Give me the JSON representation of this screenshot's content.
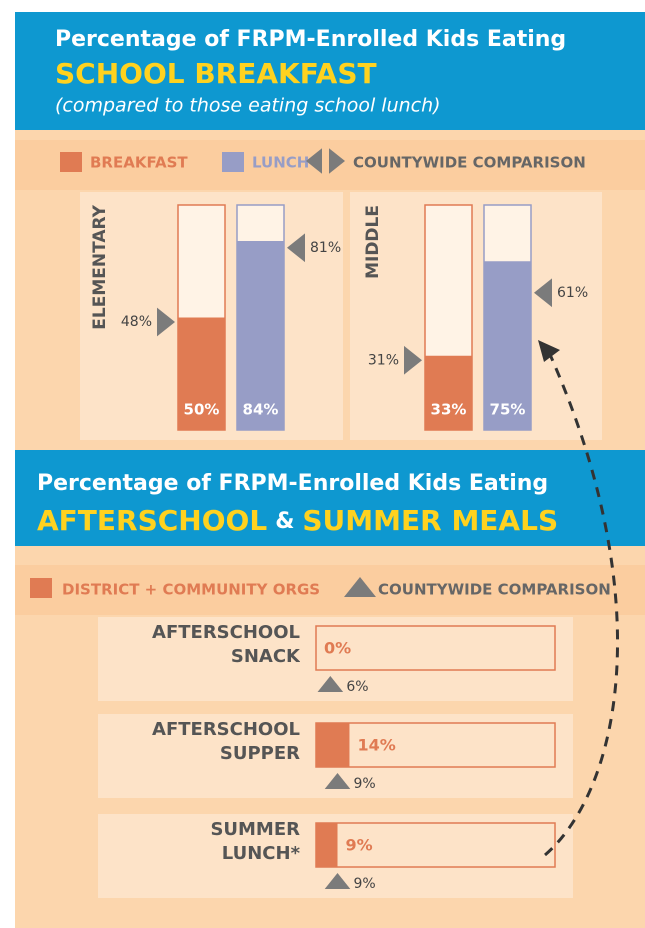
{
  "chart_data": [
    {
      "type": "column-compare",
      "title": "Percentage of FRPM-Enrolled Kids Eating",
      "highlight": [
        "SCHOOL BREAKFAST"
      ],
      "subtitle": "(compared to those eating school lunch)",
      "comparison_name": "COUNTYWIDE COMPARISON",
      "comparison_color": "#7b7b7b",
      "categories": [
        "ELEMENTARY",
        "MIDDLE"
      ],
      "series": [
        {
          "name": "BREAKFAST",
          "color": "#e07b53",
          "values": [
            50,
            33
          ],
          "value_labels": [
            "50%",
            "33%"
          ],
          "comparison_values": [
            48,
            31
          ],
          "comparison_labels": [
            "48%",
            "31%"
          ]
        },
        {
          "name": "LUNCH",
          "color": "#979dc6",
          "values": [
            84,
            75
          ],
          "value_labels": [
            "84%",
            "75%"
          ],
          "comparison_values": [
            81,
            61
          ],
          "comparison_labels": [
            "81%",
            "61%"
          ]
        }
      ],
      "ylim": [
        0,
        100
      ]
    },
    {
      "type": "bar-compare",
      "title": "Percentage of FRPM-Enrolled Kids Eating",
      "highlight": [
        "AFTERSCHOOL",
        "&",
        "SUMMER MEALS"
      ],
      "comparison_name": "COUNTYWIDE COMPARISON",
      "comparison_color": "#7b7b7b",
      "categories": [
        "AFTERSCHOOL SNACK",
        "AFTERSCHOOL SUPPER",
        "SUMMER LUNCH*"
      ],
      "series": [
        {
          "name": "DISTRICT + COMMUNITY ORGS",
          "color": "#e07b53",
          "values": [
            0,
            14,
            9
          ],
          "value_labels": [
            "0%",
            "14%",
            "9%"
          ],
          "comparison_values": [
            6,
            9,
            9
          ],
          "comparison_labels": [
            "6%",
            "9%",
            "9%"
          ]
        }
      ],
      "xlim": [
        0,
        100
      ]
    }
  ]
}
